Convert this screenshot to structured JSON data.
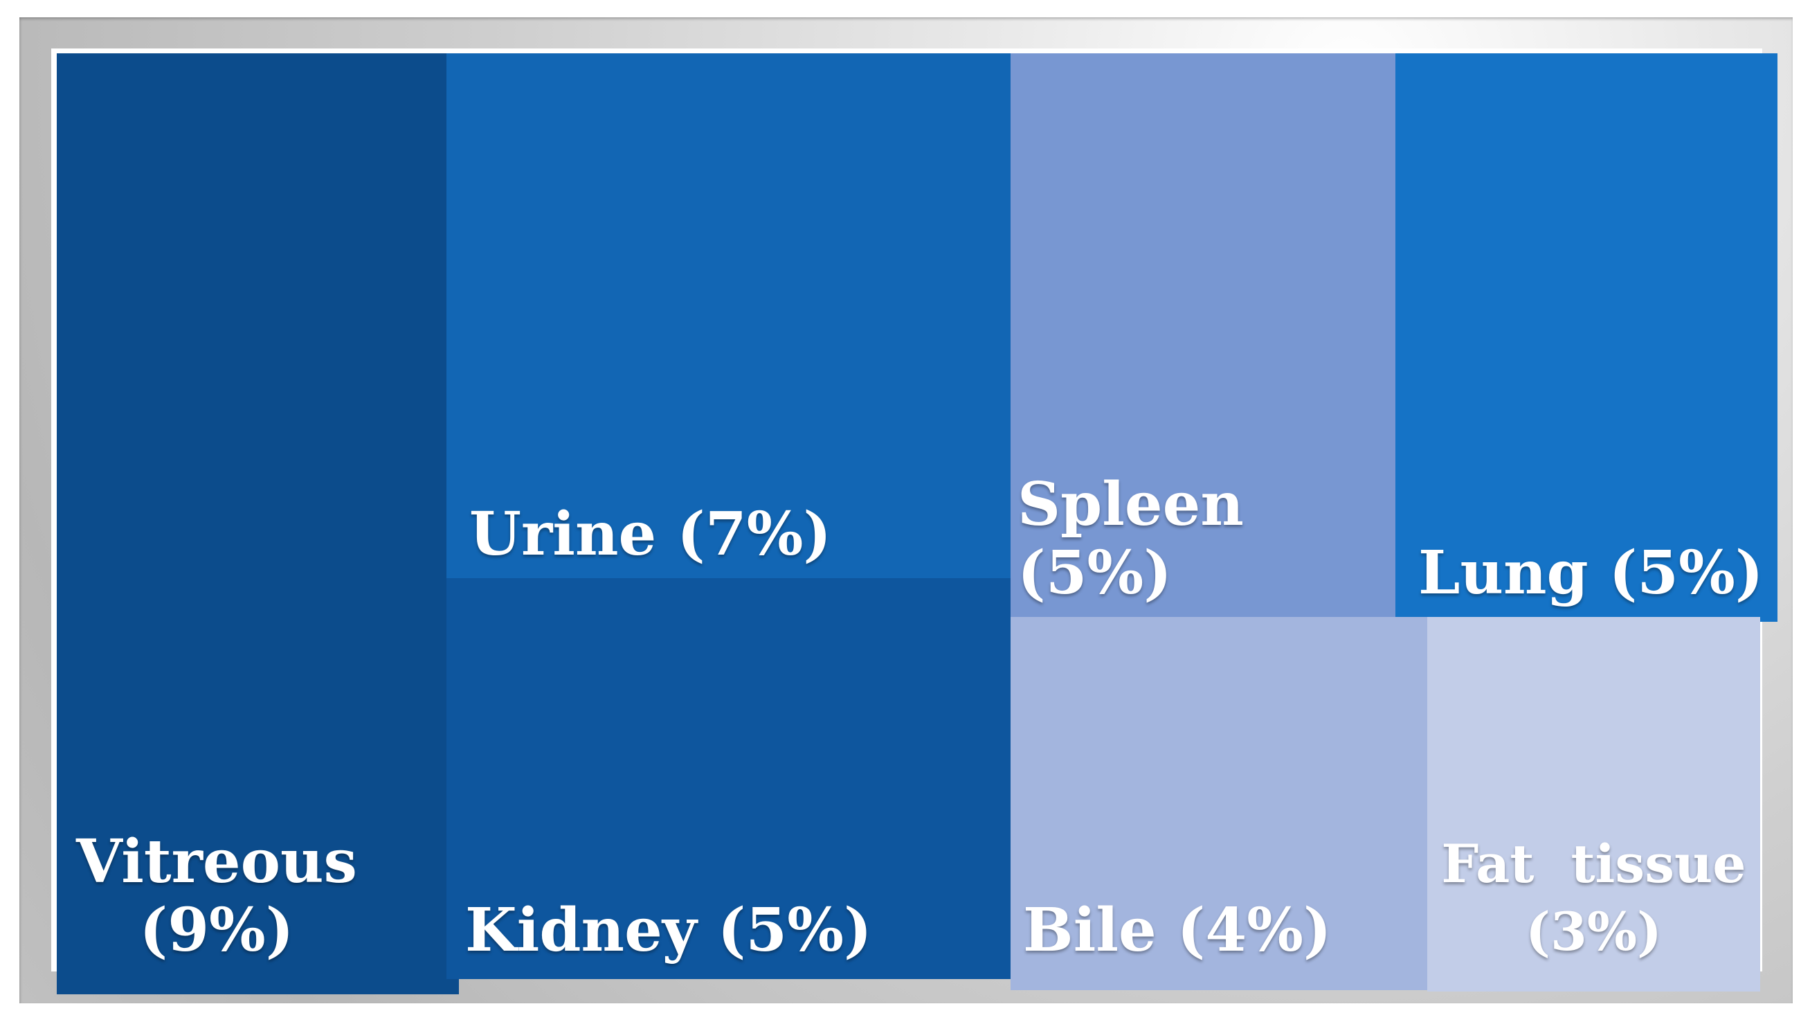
{
  "figure": {
    "description": "Treemap of matrices with percentages, white-matted metallic gray frame",
    "frame_color_hint": "#c9c9c9",
    "mat_color": "#ffffff",
    "label_text_color": "#ffffff"
  },
  "chart_data": {
    "type": "treemap",
    "title": "",
    "unit": "%",
    "legend": "none",
    "items": [
      {
        "label": "Vitreous",
        "value": 9,
        "display": "Vitreous\n(9%)",
        "color": "#0c4c8c",
        "text_color": "#ffffff"
      },
      {
        "label": "Urine",
        "value": 7,
        "display": "Urine (7%)",
        "color": "#1266b4",
        "text_color": "#ffffff"
      },
      {
        "label": "Kidney",
        "value": 5,
        "display": "Kidney (5%)",
        "color": "#0e569e",
        "text_color": "#ffffff"
      },
      {
        "label": "Spleen",
        "value": 5,
        "display": "Spleen (5%)",
        "color": "#7897d2",
        "text_color": "#ffffff"
      },
      {
        "label": "Lung",
        "value": 5,
        "display": "Lung (5%)",
        "color": "#1573c6",
        "text_color": "#ffffff"
      },
      {
        "label": "Bile",
        "value": 4,
        "display": "Bile (4%)",
        "color": "#a3b5de",
        "text_color": "#ffffff"
      },
      {
        "label": "Fat tissue",
        "value": 3,
        "display": "Fat  tissue\n(3%)",
        "color": "#c2cde8",
        "text_color": "#ffffff"
      }
    ]
  }
}
